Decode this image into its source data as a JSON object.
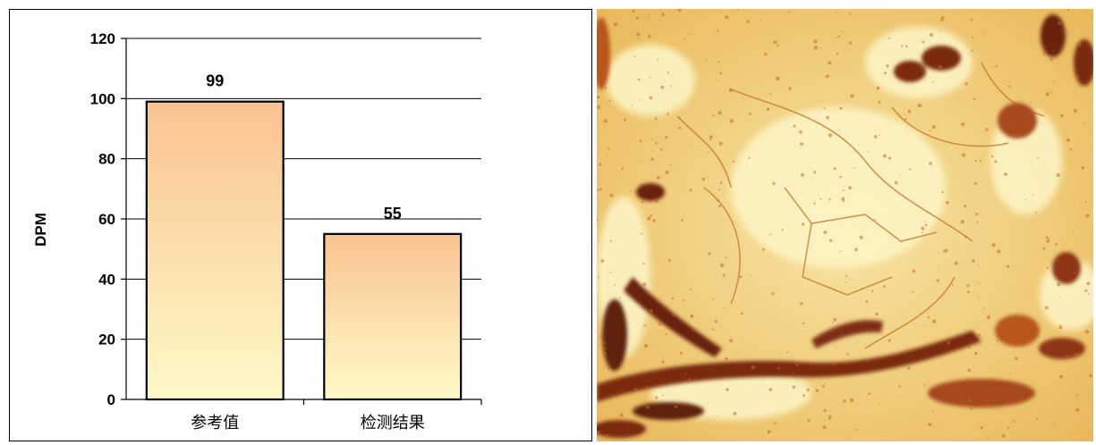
{
  "chart_data": {
    "type": "bar",
    "categories": [
      "参考值",
      "检测结果"
    ],
    "values": [
      99,
      55
    ],
    "data_labels": [
      "99",
      "55"
    ],
    "title": "",
    "xlabel": "",
    "ylabel": "DPM",
    "ylim": [
      0,
      120
    ],
    "yticks": [
      0,
      20,
      40,
      60,
      80,
      100,
      120
    ],
    "grid": true,
    "legend": "none",
    "bar_gradient": {
      "top": "#f9c391",
      "bottom": "#fdfac8"
    },
    "bar_stroke": "#000000"
  },
  "micrograph": {
    "description_colors": {
      "background": "#f3d47e",
      "stain_dark": "#7a2a10",
      "stain_mid": "#b8561c",
      "light": "#fbf3b8"
    }
  }
}
